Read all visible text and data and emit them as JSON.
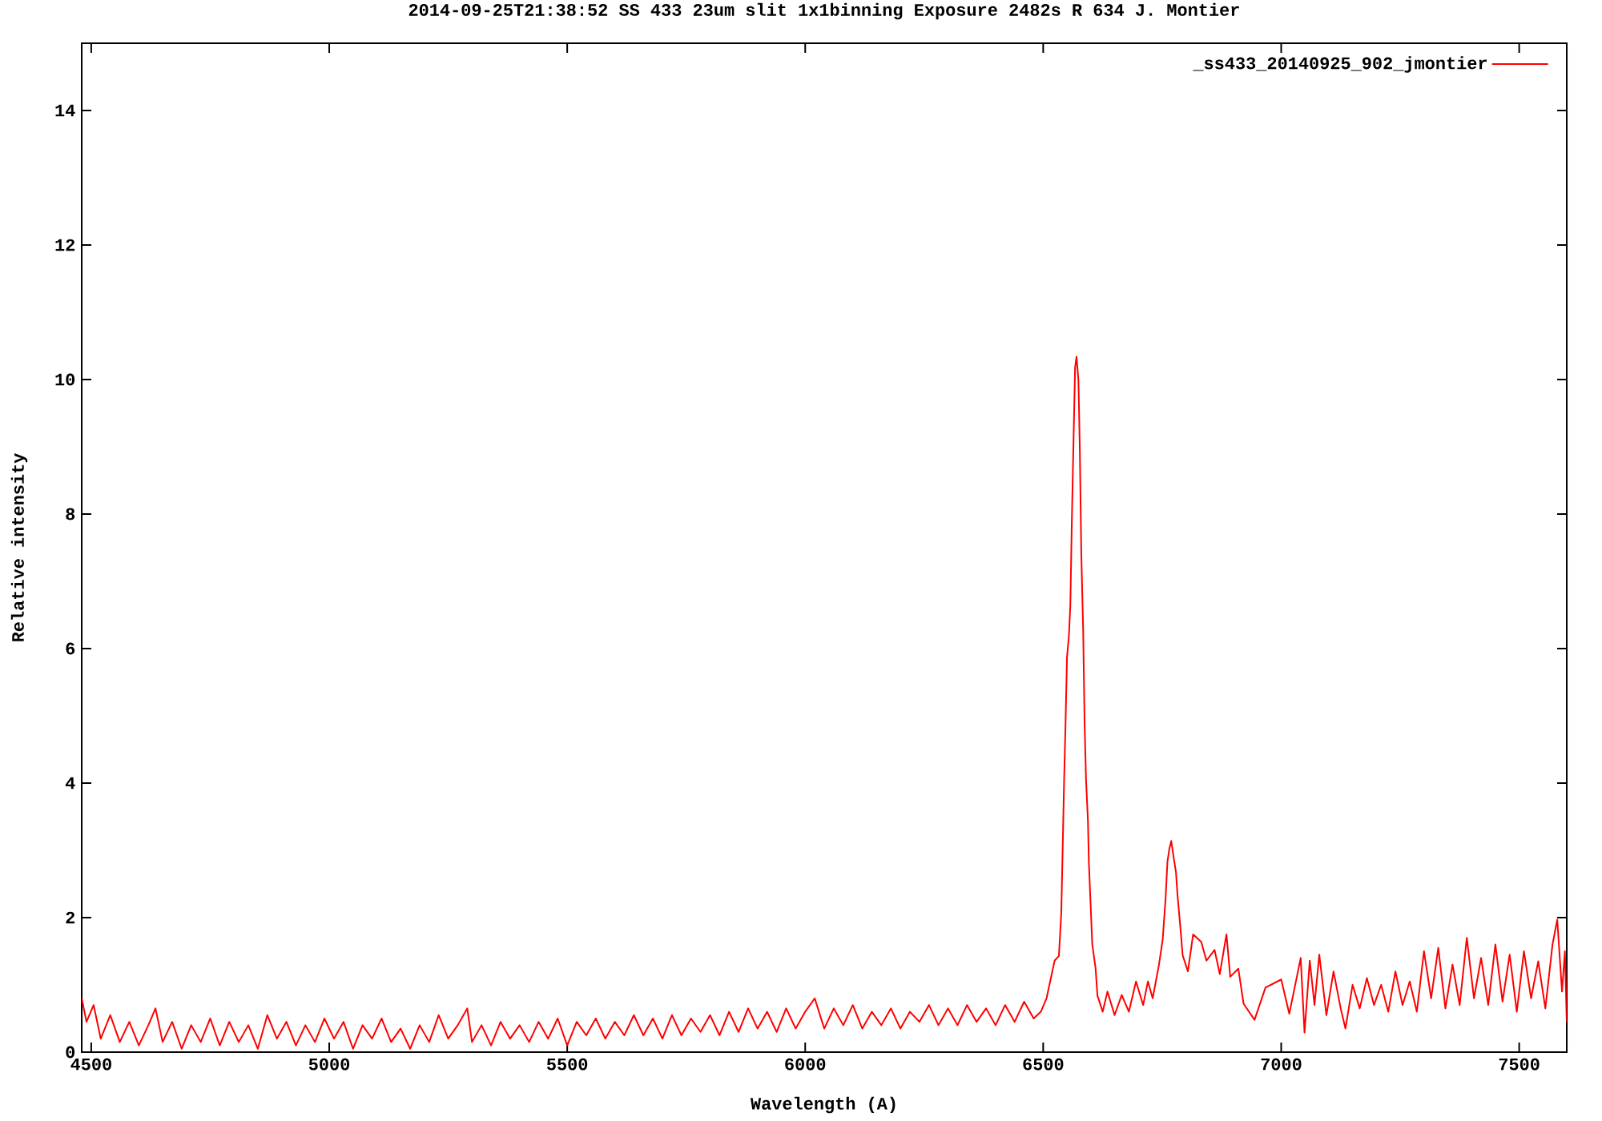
{
  "chart_data": {
    "type": "line",
    "title": "2014-09-25T21:38:52 SS 433 23um slit 1x1binning Exposure 2482s R 634 J. Montier",
    "xlabel": "Wavelength (A)",
    "ylabel": "Relative intensity",
    "x": [
      4480,
      4490,
      4505,
      4520,
      4540,
      4560,
      4580,
      4600,
      4620,
      4635,
      4650,
      4670,
      4690,
      4710,
      4730,
      4750,
      4770,
      4790,
      4810,
      4830,
      4850,
      4870,
      4890,
      4910,
      4930,
      4950,
      4970,
      4990,
      5010,
      5030,
      5050,
      5070,
      5090,
      5110,
      5130,
      5150,
      5170,
      5190,
      5210,
      5230,
      5250,
      5270,
      5290,
      5300,
      5320,
      5340,
      5360,
      5380,
      5400,
      5420,
      5440,
      5460,
      5480,
      5500,
      5520,
      5540,
      5560,
      5580,
      5600,
      5620,
      5640,
      5660,
      5680,
      5700,
      5720,
      5740,
      5760,
      5780,
      5800,
      5820,
      5840,
      5860,
      5880,
      5900,
      5920,
      5940,
      5960,
      5980,
      6000,
      6020,
      6040,
      6060,
      6080,
      6100,
      6120,
      6140,
      6160,
      6180,
      6200,
      6220,
      6240,
      6260,
      6280,
      6300,
      6320,
      6340,
      6360,
      6380,
      6400,
      6420,
      6440,
      6460,
      6480,
      6495,
      6507,
      6524,
      6533,
      6538,
      6541,
      6544,
      6547,
      6550,
      6554,
      6557,
      6560,
      6564,
      6567,
      6570,
      6574,
      6577,
      6580,
      6584,
      6587,
      6590,
      6594,
      6596,
      6600,
      6603,
      6606,
      6610,
      6614,
      6625,
      6635,
      6650,
      6665,
      6680,
      6695,
      6710,
      6720,
      6730,
      6743,
      6751,
      6757,
      6761,
      6765,
      6769,
      6774,
      6779,
      6782,
      6788,
      6793,
      6804,
      6815,
      6832,
      6843,
      6860,
      6871,
      6885,
      6893,
      6910,
      6921,
      6944,
      6967,
      7000,
      7017,
      7041,
      7049,
      7060,
      7070,
      7080,
      7095,
      7110,
      7125,
      7135,
      7150,
      7165,
      7180,
      7195,
      7210,
      7225,
      7240,
      7255,
      7270,
      7285,
      7300,
      7315,
      7330,
      7345,
      7360,
      7375,
      7390,
      7405,
      7420,
      7435,
      7450,
      7465,
      7480,
      7495,
      7510,
      7525,
      7540,
      7555,
      7570,
      7580,
      7590,
      7596,
      7600
    ],
    "series": [
      {
        "name": "_ss433_20140925_902_jmontier",
        "color": "#ff0000",
        "values": [
          0.8,
          0.45,
          0.7,
          0.2,
          0.55,
          0.15,
          0.45,
          0.1,
          0.4,
          0.65,
          0.15,
          0.45,
          0.05,
          0.4,
          0.15,
          0.5,
          0.1,
          0.45,
          0.15,
          0.4,
          0.05,
          0.55,
          0.2,
          0.45,
          0.1,
          0.4,
          0.15,
          0.5,
          0.2,
          0.45,
          0.05,
          0.4,
          0.2,
          0.5,
          0.15,
          0.35,
          0.05,
          0.4,
          0.15,
          0.55,
          0.2,
          0.4,
          0.65,
          0.15,
          0.4,
          0.1,
          0.45,
          0.2,
          0.4,
          0.15,
          0.45,
          0.2,
          0.5,
          0.1,
          0.45,
          0.25,
          0.5,
          0.2,
          0.45,
          0.25,
          0.55,
          0.25,
          0.5,
          0.2,
          0.55,
          0.25,
          0.5,
          0.3,
          0.55,
          0.25,
          0.6,
          0.3,
          0.65,
          0.35,
          0.6,
          0.3,
          0.65,
          0.35,
          0.6,
          0.8,
          0.35,
          0.65,
          0.4,
          0.7,
          0.35,
          0.6,
          0.4,
          0.65,
          0.35,
          0.6,
          0.45,
          0.7,
          0.4,
          0.65,
          0.4,
          0.7,
          0.45,
          0.65,
          0.4,
          0.7,
          0.45,
          0.75,
          0.5,
          0.6,
          0.8,
          1.36,
          1.43,
          2.07,
          3.06,
          4.06,
          4.9,
          5.87,
          6.19,
          6.64,
          7.83,
          9.19,
          10.18,
          10.34,
          9.99,
          8.95,
          7.43,
          6.26,
          4.87,
          4.05,
          3.44,
          2.81,
          2.13,
          1.61,
          1.45,
          1.25,
          0.84,
          0.6,
          0.9,
          0.55,
          0.85,
          0.6,
          1.05,
          0.7,
          1.05,
          0.8,
          1.29,
          1.67,
          2.27,
          2.83,
          3.02,
          3.14,
          2.9,
          2.67,
          2.35,
          1.87,
          1.44,
          1.2,
          1.75,
          1.64,
          1.36,
          1.52,
          1.16,
          1.75,
          1.12,
          1.24,
          0.72,
          0.48,
          0.96,
          1.08,
          0.57,
          1.4,
          0.29,
          1.36,
          0.7,
          1.45,
          0.55,
          1.2,
          0.65,
          0.35,
          1.0,
          0.65,
          1.1,
          0.7,
          1.0,
          0.6,
          1.2,
          0.7,
          1.05,
          0.6,
          1.5,
          0.8,
          1.55,
          0.65,
          1.3,
          0.7,
          1.7,
          0.8,
          1.4,
          0.7,
          1.6,
          0.75,
          1.45,
          0.6,
          1.5,
          0.8,
          1.35,
          0.65,
          1.6,
          1.97,
          0.9,
          1.5,
          0.45
        ]
      }
    ],
    "xlim": [
      4480,
      7600
    ],
    "ylim": [
      0,
      15
    ],
    "xticks": [
      4500,
      5000,
      5500,
      6000,
      6500,
      7000,
      7500
    ],
    "yticks": [
      0,
      2,
      4,
      6,
      8,
      10,
      12,
      14
    ],
    "legend": "top right"
  }
}
